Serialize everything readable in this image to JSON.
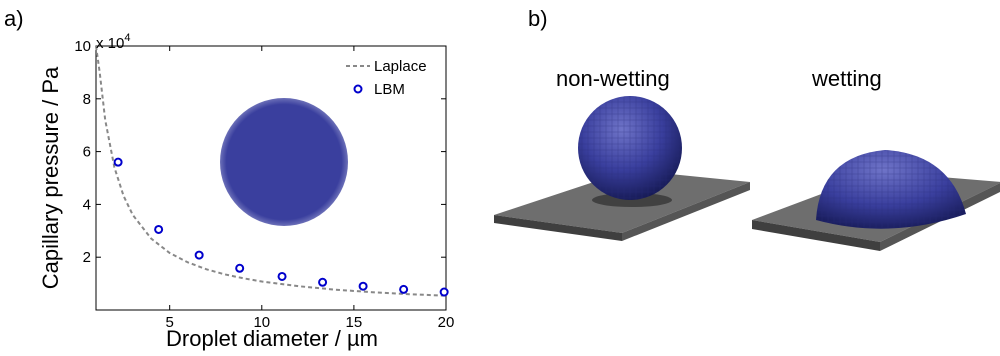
{
  "panels": {
    "a_label": "a)",
    "b_label": "b)"
  },
  "chart_data": {
    "type": "scatter",
    "xlabel": "Droplet diameter / µm",
    "ylabel": "Capillary pressure / Pa",
    "y_multiplier": "x 10",
    "y_exponent": "4",
    "xlim": [
      1,
      20
    ],
    "ylim": [
      0,
      10
    ],
    "x_ticks": [
      5,
      10,
      15,
      20
    ],
    "y_ticks": [
      2,
      4,
      6,
      8,
      10
    ],
    "legend_position": "top-right",
    "grid": false,
    "series": [
      {
        "name": "Laplace",
        "style": "dashed-line",
        "color": "#888888",
        "x": [
          1.0,
          1.2,
          1.5,
          2.0,
          2.5,
          3.0,
          4.0,
          5.0,
          6.0,
          7.0,
          8.0,
          9.0,
          10.0,
          12.0,
          14.0,
          16.0,
          18.0,
          20.0
        ],
        "y": [
          10.8,
          9.0,
          7.2,
          5.4,
          4.32,
          3.6,
          2.7,
          2.16,
          1.8,
          1.54,
          1.35,
          1.2,
          1.08,
          0.9,
          0.77,
          0.675,
          0.6,
          0.54
        ]
      },
      {
        "name": "LBM",
        "style": "open-circle",
        "color": "#0000cc",
        "x": [
          2.2,
          4.4,
          6.6,
          8.8,
          11.1,
          13.3,
          15.5,
          17.7,
          19.9
        ],
        "y": [
          5.6,
          3.05,
          2.08,
          1.58,
          1.27,
          1.05,
          0.9,
          0.78,
          0.68
        ]
      }
    ]
  },
  "scenes": {
    "nonwetting_label": "non-wetting",
    "wetting_label": "wetting",
    "droplet_color": "#3a3f9e",
    "plate_color": "#6e6e6e"
  }
}
